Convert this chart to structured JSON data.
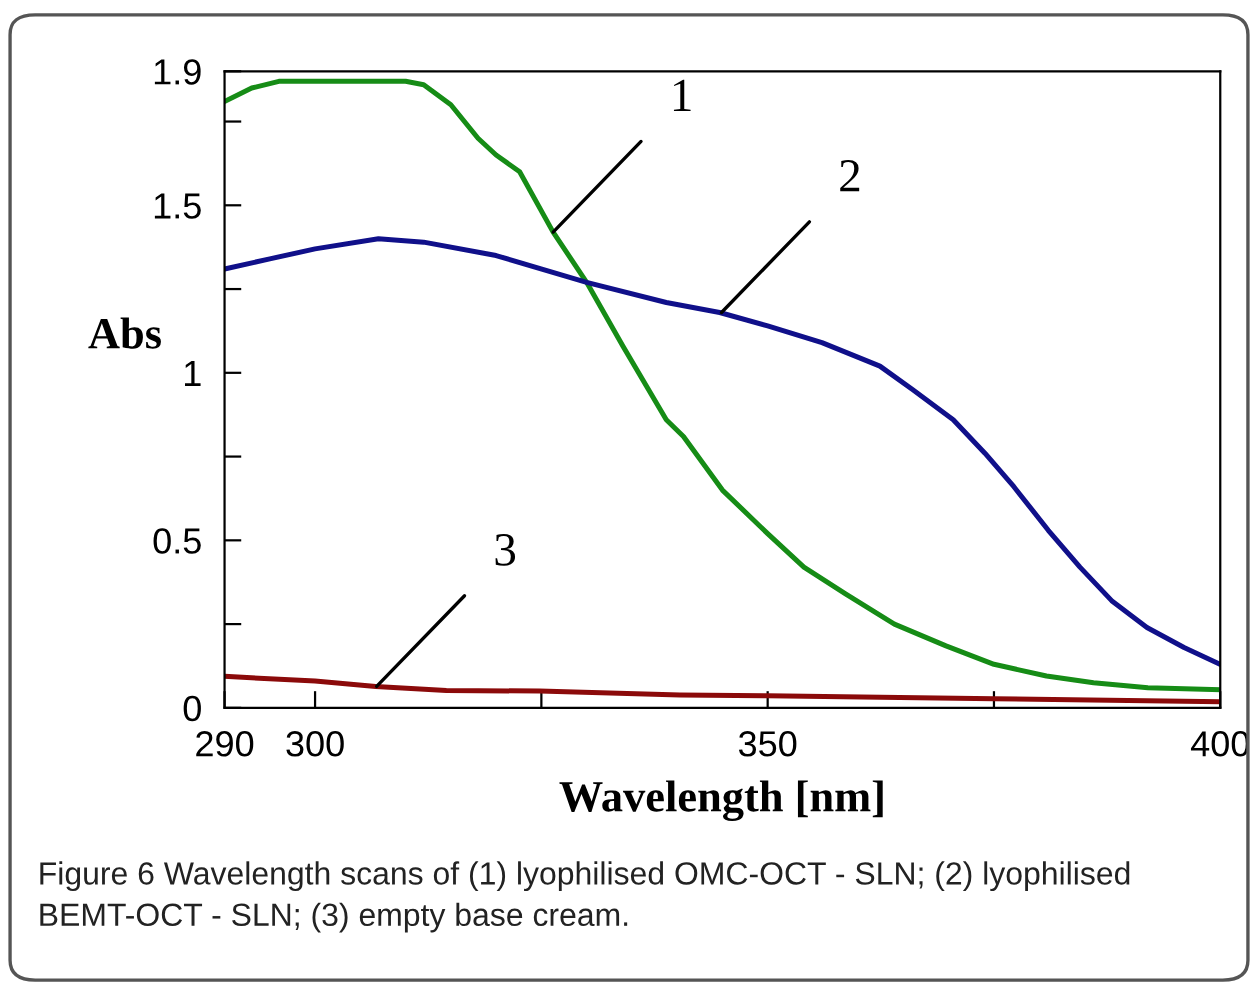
{
  "chart_data": {
    "type": "line",
    "xlabel": "Wavelength [nm]",
    "ylabel": "Abs",
    "xlim": [
      290,
      400
    ],
    "ylim": [
      0,
      1.9
    ],
    "xticks": [
      290,
      300,
      {
        "value": 325,
        "label": null
      },
      350,
      {
        "value": 375,
        "label": null
      },
      400
    ],
    "yticks": [
      0,
      {
        "value": 0.25,
        "label": null
      },
      0.5,
      {
        "value": 0.75,
        "label": null
      },
      1,
      {
        "value": 1.25,
        "label": null
      },
      1.5,
      {
        "value": 1.75,
        "label": null
      },
      1.9
    ],
    "grid": false,
    "legend": false,
    "marker": "none",
    "line_style": "solid",
    "series": [
      {
        "color": "#168c16",
        "x": [
          290,
          293,
          296,
          300,
          305,
          310,
          312,
          315,
          318,
          320,
          322.6,
          326.3,
          330,
          334,
          338.8,
          340.7,
          345,
          350,
          354,
          358.6,
          364,
          369.7,
          375,
          380.8,
          386,
          392,
          400
        ],
        "values": [
          1.81,
          1.85,
          1.87,
          1.87,
          1.87,
          1.87,
          1.86,
          1.8,
          1.7,
          1.65,
          1.6,
          1.42,
          1.27,
          1.08,
          0.86,
          0.81,
          0.65,
          0.52,
          0.42,
          0.34,
          0.25,
          0.185,
          0.13,
          0.095,
          0.075,
          0.06,
          0.054
        ]
      },
      {
        "color": "#10108a",
        "x": [
          290,
          295,
          300,
          307,
          312,
          320,
          330,
          338.8,
          344.7,
          350,
          356,
          362.4,
          366,
          370.5,
          374,
          377.2,
          381,
          384.5,
          388,
          391.9,
          396,
          400
        ],
        "values": [
          1.31,
          1.34,
          1.37,
          1.4,
          1.39,
          1.35,
          1.27,
          1.21,
          1.18,
          1.14,
          1.09,
          1.02,
          0.95,
          0.86,
          0.76,
          0.66,
          0.53,
          0.42,
          0.32,
          0.24,
          0.18,
          0.13
        ]
      },
      {
        "color": "#8b0a0a",
        "x": [
          290,
          300,
          306.7,
          314.5,
          324.8,
          340.3,
          350,
          375,
          400
        ],
        "values": [
          0.094,
          0.08,
          0.064,
          0.052,
          0.05,
          0.038,
          0.036,
          0.027,
          0.018
        ]
      }
    ],
    "annotations": [
      {
        "text": "1",
        "x": 326.3,
        "y": 1.42
      },
      {
        "text": "2",
        "x": 344.9,
        "y": 1.18
      },
      {
        "text": "3",
        "x": 306.8,
        "y": 0.064
      },
      "Figure 6 Wavelength scans of (1) lyophilised OMC-OCT - SLN; (2) lyophilised BEMT-OCT - SLN; (3) empty base cream."
    ]
  }
}
